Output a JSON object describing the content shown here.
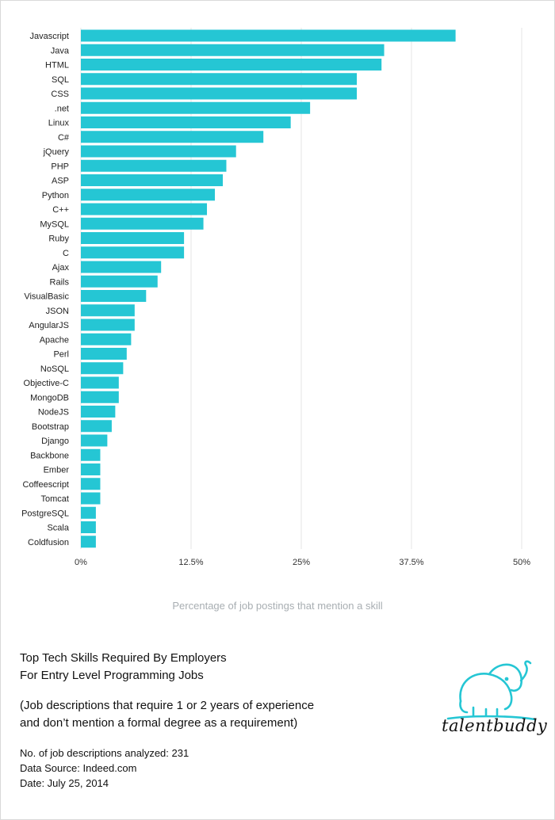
{
  "chart_data": {
    "type": "bar",
    "orientation": "horizontal",
    "categories": [
      "Javascript",
      "Java",
      "HTML",
      "SQL",
      "CSS",
      ".net",
      "Linux",
      "C#",
      "jQuery",
      "PHP",
      "ASP",
      "Python",
      "C++",
      "MySQL",
      "Ruby",
      "C",
      "Ajax",
      "Rails",
      "VisualBasic",
      "JSON",
      "AngularJS",
      "Apache",
      "Perl",
      "NoSQL",
      "Objective-C",
      "MongoDB",
      "NodeJS",
      "Bootstrap",
      "Django",
      "Backbone",
      "Ember",
      "Coffeescript",
      "Tomcat",
      "PostgreSQL",
      "Scala",
      "Coldfusion"
    ],
    "values": [
      42.5,
      34.4,
      34.1,
      31.3,
      31.3,
      26.0,
      23.8,
      20.7,
      17.6,
      16.5,
      16.1,
      15.2,
      14.3,
      13.9,
      11.7,
      11.7,
      9.1,
      8.7,
      7.4,
      6.1,
      6.1,
      5.7,
      5.2,
      4.8,
      4.3,
      4.3,
      3.9,
      3.5,
      3.0,
      2.2,
      2.2,
      2.2,
      2.2,
      1.7,
      1.7,
      1.7
    ],
    "xlabel": "Percentage of job postings that mention a skill",
    "xlim": [
      0,
      50
    ],
    "ticks": [
      0,
      12.5,
      25,
      37.5,
      50
    ],
    "tick_labels": [
      "0%",
      "12.5%",
      "25%",
      "37.5%",
      "50%"
    ],
    "grid": true,
    "bar_color": "#25c6d4"
  },
  "footer": {
    "title_line1": "Top Tech Skills Required By Employers",
    "title_line2": "For Entry Level Programming Jobs",
    "subtitle_line1": "(Job descriptions that require 1 or 2 years of experience",
    "subtitle_line2": "and don’t mention a formal degree as a requirement)",
    "analyzed": "No. of job descriptions analyzed: 231",
    "source": "Data Source: Indeed.com",
    "date": "Date: July 25, 2014"
  },
  "logo": {
    "wordmark": "talentbuddy",
    "icon": "elephant-icon",
    "color": "#25c6d4"
  }
}
